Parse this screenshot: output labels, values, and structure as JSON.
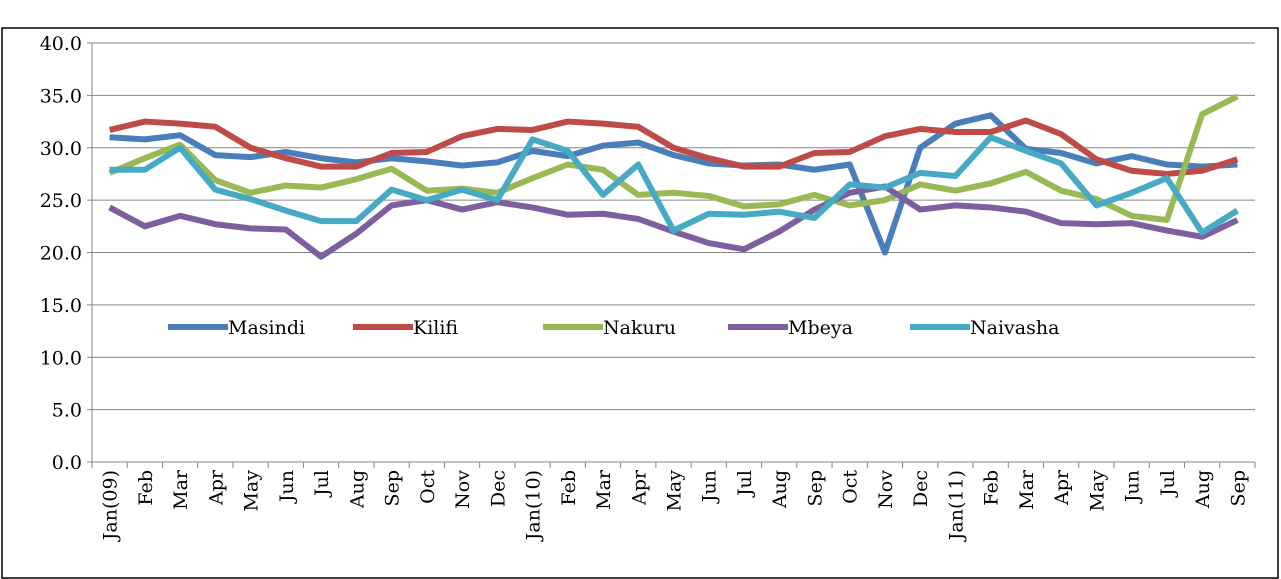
{
  "chart_data": {
    "type": "line",
    "categories": [
      "Jan(09)",
      "Feb",
      "Mar",
      "Apr",
      "May",
      "Jun",
      "Jul",
      "Aug",
      "Sep",
      "Oct",
      "Nov",
      "Dec",
      "Jan(10)",
      "Feb",
      "Mar",
      "Apr",
      "May",
      "Jun",
      "Jul",
      "Aug",
      "Sep",
      "Oct",
      "Nov",
      "Dec",
      "Jan(11)",
      "Feb",
      "Mar",
      "Apr",
      "May",
      "Jun",
      "Jul",
      "Aug",
      "Sep"
    ],
    "series": [
      {
        "name": "Masindi",
        "color": "#4a7ebb",
        "values": [
          31.0,
          30.8,
          31.2,
          29.3,
          29.1,
          29.6,
          29.0,
          28.6,
          29.0,
          28.7,
          28.3,
          28.6,
          29.7,
          29.2,
          30.2,
          30.5,
          29.3,
          28.5,
          28.3,
          28.4,
          27.9,
          28.4,
          20.0,
          30.0,
          32.3,
          33.1,
          29.9,
          29.5,
          28.5,
          29.2,
          28.4,
          28.2,
          28.4
        ]
      },
      {
        "name": "Kilifi",
        "color": "#be4b48",
        "values": [
          31.7,
          32.5,
          32.3,
          32.0,
          30.0,
          29.0,
          28.2,
          28.2,
          29.5,
          29.6,
          31.1,
          31.8,
          31.7,
          32.5,
          32.3,
          32.0,
          30.0,
          29.0,
          28.2,
          28.2,
          29.5,
          29.6,
          31.1,
          31.8,
          31.5,
          31.5,
          32.6,
          31.3,
          28.9,
          27.8,
          27.5,
          27.8,
          28.9
        ]
      },
      {
        "name": "Nakuru",
        "color": "#98b954",
        "values": [
          27.6,
          29.0,
          30.3,
          26.9,
          25.7,
          26.4,
          26.2,
          27.0,
          28.0,
          25.9,
          26.1,
          25.7,
          27.1,
          28.4,
          27.9,
          25.5,
          25.7,
          25.4,
          24.4,
          24.6,
          25.5,
          24.5,
          25.0,
          26.5,
          25.9,
          26.6,
          27.7,
          25.9,
          25.1,
          23.5,
          23.1,
          33.2,
          34.9
        ]
      },
      {
        "name": "Mbeya",
        "color": "#7d5fa0",
        "values": [
          24.3,
          22.5,
          23.5,
          22.7,
          22.3,
          22.2,
          19.6,
          21.8,
          24.5,
          25.0,
          24.1,
          24.8,
          24.3,
          23.6,
          23.7,
          23.2,
          22.0,
          20.9,
          20.3,
          22.0,
          24.1,
          25.7,
          26.3,
          24.1,
          24.5,
          24.3,
          23.9,
          22.8,
          22.7,
          22.8,
          22.1,
          21.5,
          23.1
        ]
      },
      {
        "name": "Naivasha",
        "color": "#46aac5",
        "values": [
          27.9,
          27.9,
          30.0,
          26.0,
          25.1,
          24.0,
          23.0,
          23.0,
          26.0,
          25.0,
          26.0,
          25.0,
          30.8,
          29.7,
          25.5,
          28.4,
          22.1,
          23.7,
          23.6,
          23.9,
          23.3,
          26.5,
          26.2,
          27.6,
          27.3,
          31.0,
          29.7,
          28.5,
          24.5,
          25.7,
          27.1,
          21.9,
          24.0
        ]
      }
    ],
    "ylim": [
      0,
      40
    ],
    "yticks": [
      {
        "value": 0,
        "label": "0.0"
      },
      {
        "value": 5,
        "label": "5.0"
      },
      {
        "value": 10,
        "label": "10.0"
      },
      {
        "value": 15,
        "label": "15.0"
      },
      {
        "value": 20,
        "label": "20.0"
      },
      {
        "value": 25,
        "label": "25.0"
      },
      {
        "value": 30,
        "label": "30.0"
      },
      {
        "value": 35,
        "label": "35.0"
      },
      {
        "value": 40,
        "label": "40.0"
      }
    ],
    "grid": true
  }
}
